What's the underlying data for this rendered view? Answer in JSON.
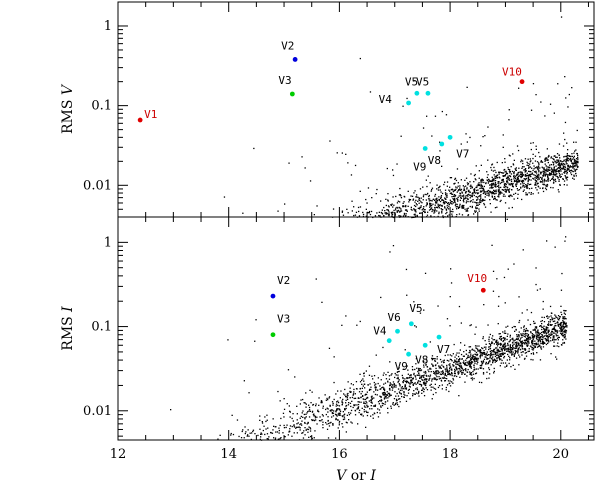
{
  "chart_data": {
    "type": "scatter",
    "xlabel_parts": [
      "V",
      " or ",
      "I"
    ],
    "xlim": [
      12,
      20.6
    ],
    "xticks": [
      12,
      14,
      16,
      18,
      20
    ],
    "xtick_labels": [
      "12",
      "14",
      "16",
      "18",
      "20"
    ],
    "panels": [
      {
        "id": "top",
        "ylabel_parts": [
          "RMS ",
          "V"
        ],
        "yscale": "log",
        "ylim": [
          0.004,
          2.0
        ],
        "yticks": [
          0.01,
          0.1,
          1
        ],
        "ytick_labels": [
          "0.01",
          "0.1",
          "1"
        ],
        "colors": {
          "V1": "#e00000",
          "V2": "#0000dd",
          "V3": "#00cc00",
          "cyan": "#00e0e0",
          "V10": "#e00000"
        },
        "field": {
          "trend_a": -3.12,
          "trend_b": 0.208,
          "trend_x0": 13.5,
          "scatter_dex": 0.17,
          "n_points": 2300,
          "outlier_fraction": 0.05,
          "x_min": 12.5,
          "x_max": 20.3
        },
        "variables": [
          {
            "name": "V1",
            "x": 12.4,
            "y": 0.066,
            "color": "#e00000",
            "label": "V1"
          },
          {
            "name": "V2",
            "x": 15.2,
            "y": 0.38,
            "color": "#0000dd",
            "label": "V2"
          },
          {
            "name": "V3",
            "x": 15.15,
            "y": 0.14,
            "color": "#00cc00",
            "label": "V3"
          },
          {
            "name": "V4",
            "x": 17.25,
            "y": 0.108,
            "color": "#00e0e0",
            "label": "V4"
          },
          {
            "name": "V5a",
            "x": 17.4,
            "y": 0.143,
            "color": "#00e0e0",
            "label": "V5"
          },
          {
            "name": "V5b",
            "x": 17.6,
            "y": 0.143,
            "color": "#00e0e0",
            "label": "V5"
          },
          {
            "name": "V7",
            "x": 18.0,
            "y": 0.04,
            "color": "#00e0e0",
            "label": "V7"
          },
          {
            "name": "V8",
            "x": 17.85,
            "y": 0.033,
            "color": "#00e0e0",
            "label": "V8"
          },
          {
            "name": "V9",
            "x": 17.55,
            "y": 0.029,
            "color": "#00e0e0",
            "label": "V9"
          },
          {
            "name": "V10",
            "x": 19.3,
            "y": 0.2,
            "color": "#e00000",
            "label": "V10"
          }
        ]
      },
      {
        "id": "bottom",
        "ylabel_parts": [
          "RMS ",
          "I"
        ],
        "yscale": "log",
        "ylim": [
          0.0045,
          2.0
        ],
        "yticks": [
          0.01,
          0.1,
          1
        ],
        "ytick_labels": [
          "0.01",
          "0.1",
          "1"
        ],
        "colors": {
          "V2": "#0000dd",
          "V3": "#00cc00",
          "cyan": "#00e0e0",
          "V10": "#e00000"
        },
        "field": {
          "trend_a": -2.8,
          "trend_b": 0.238,
          "trend_x0": 12.5,
          "scatter_dex": 0.15,
          "n_points": 2300,
          "outlier_fraction": 0.05,
          "x_min": 12.2,
          "x_max": 20.1
        },
        "variables": [
          {
            "name": "V2",
            "x": 14.8,
            "y": 0.23,
            "color": "#0000dd",
            "label": "V2"
          },
          {
            "name": "V3",
            "x": 14.8,
            "y": 0.08,
            "color": "#00cc00",
            "label": "V3"
          },
          {
            "name": "V4",
            "x": 16.9,
            "y": 0.068,
            "color": "#00e0e0",
            "label": "V4"
          },
          {
            "name": "V5",
            "x": 17.3,
            "y": 0.108,
            "color": "#00e0e0",
            "label": "V5"
          },
          {
            "name": "V6",
            "x": 17.05,
            "y": 0.088,
            "color": "#00e0e0",
            "label": "V6"
          },
          {
            "name": "V7",
            "x": 17.8,
            "y": 0.075,
            "color": "#00e0e0",
            "label": "V7"
          },
          {
            "name": "V8",
            "x": 17.55,
            "y": 0.06,
            "color": "#00e0e0",
            "label": "V8"
          },
          {
            "name": "V9",
            "x": 17.25,
            "y": 0.047,
            "color": "#00e0e0",
            "label": "V9"
          },
          {
            "name": "V10",
            "x": 18.6,
            "y": 0.27,
            "color": "#e00000",
            "label": "V10"
          }
        ]
      }
    ]
  }
}
